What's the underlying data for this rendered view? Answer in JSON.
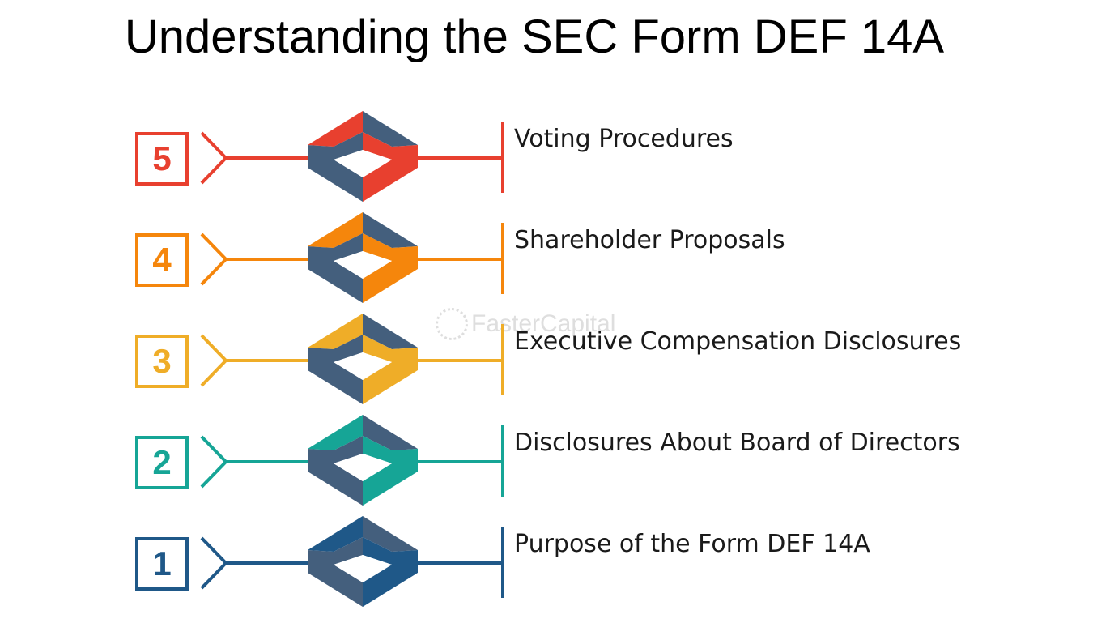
{
  "title": "Understanding the SEC Form DEF 14A",
  "watermark": "FasterCapital",
  "steps": [
    {
      "number": "5",
      "label": "Voting Procedures",
      "color": "#e8402f"
    },
    {
      "number": "4",
      "label": "Shareholder Proposals",
      "color": "#f5860c"
    },
    {
      "number": "3",
      "label": "Executive Compensation Disclosures",
      "color": "#efad28"
    },
    {
      "number": "2",
      "label": "Disclosures About Board of Directors",
      "color": "#16a596"
    },
    {
      "number": "1",
      "label": "Purpose of the Form DEF 14A",
      "color": "#1f5888"
    }
  ],
  "colors": {
    "cube_dark": "#445f7d"
  }
}
